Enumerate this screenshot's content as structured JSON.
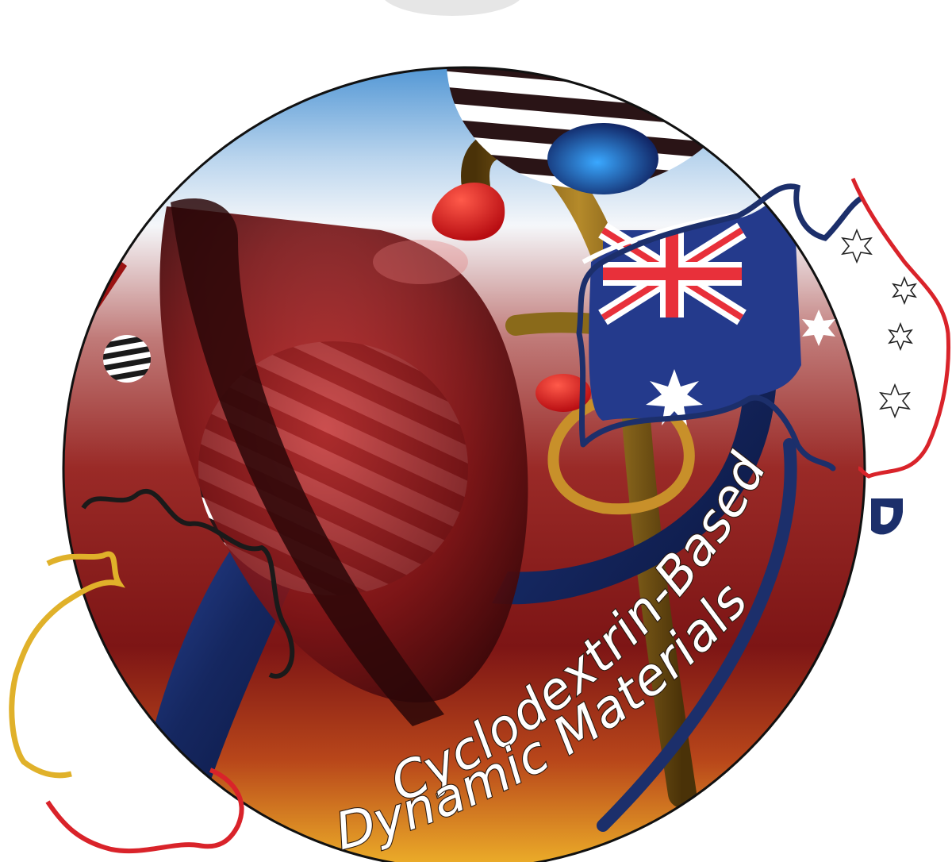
{
  "artwork": {
    "title_line1": "Cyclodextrin-Based",
    "title_line2": "Dynamic Materials"
  },
  "colors": {
    "sky_top": "#5b9fd8",
    "sky_light": "#f3f7fb",
    "maroon": "#8c1c1a",
    "dark_red": "#5a0f12",
    "orange": "#e6a12a",
    "navy": "#1c2f6b",
    "gold_tube": "#8a6a1a",
    "flag_red": "#e8303a",
    "flag_blue": "#243a8c",
    "outline_red": "#d9232a",
    "outline_gold": "#e0b12a"
  },
  "icons": {
    "flag": "australian-flag-icon",
    "map": "australia-map-outline-icon",
    "star": "star-icon"
  }
}
